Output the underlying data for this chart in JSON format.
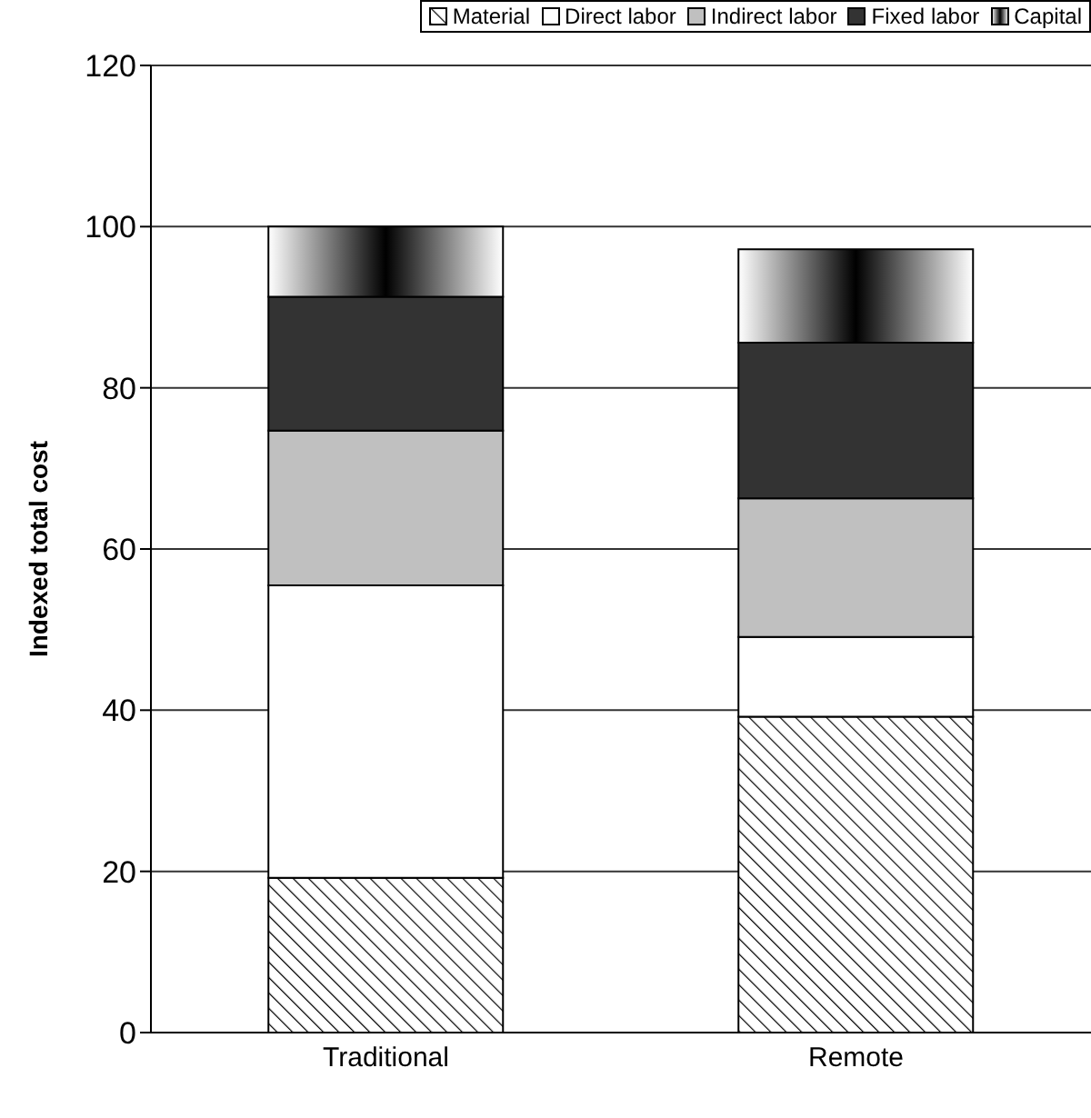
{
  "chart_data": {
    "type": "bar",
    "ylabel": "Indexed total cost",
    "categories": [
      "Traditional",
      "Remote"
    ],
    "stacked": true,
    "series": [
      {
        "name": "Material",
        "color": "#000000",
        "values": [
          19.2,
          39.2
        ]
      },
      {
        "name": "Direct labor",
        "color": "#ffffff",
        "values": [
          36.3,
          9.9
        ]
      },
      {
        "name": "Indirect labor",
        "color": "#c0c0c0",
        "values": [
          19.2,
          17.2
        ]
      },
      {
        "name": "Fixed labor",
        "color": "#333333",
        "values": [
          16.6,
          19.3
        ]
      },
      {
        "name": "Capital",
        "color": "#000000",
        "values": [
          8.7,
          11.6
        ]
      }
    ],
    "ylim": [
      0,
      120
    ],
    "yticks": [
      0,
      20,
      40,
      60,
      80,
      100,
      120
    ],
    "grid": "y",
    "legend": "top"
  }
}
